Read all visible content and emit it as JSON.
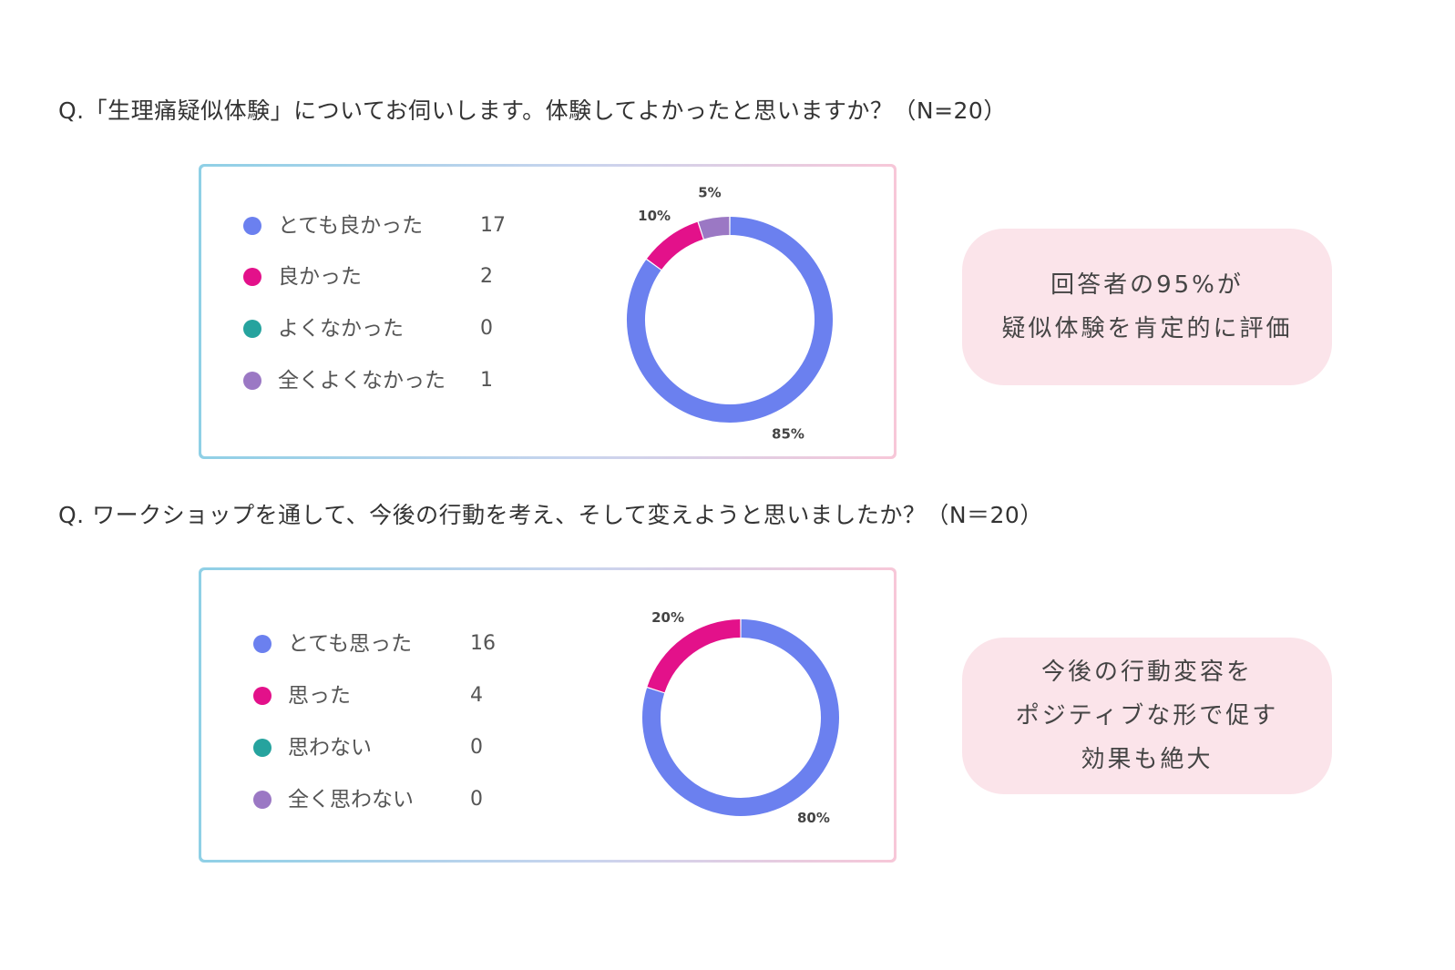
{
  "questions": [
    {
      "text": "Q.「生理痛疑似体験」についてお伺いします。体験してよかったと思いますか？（N=20）",
      "callout_lines": [
        "回答者の95%が",
        "疑似体験を肯定的に評価"
      ]
    },
    {
      "text": "Q. ワークショップを通して、今後の行動を考え、そして変えようと思いましたか？（N＝20）",
      "callout_lines": [
        "今後の行動変容を",
        "ポジティブな形で促す",
        "効果も絶大"
      ]
    }
  ],
  "colors": {
    "blue": "#6b80ef",
    "magenta": "#e3118a",
    "teal": "#26a39e",
    "purple": "#9b78c4"
  },
  "chart_data": [
    {
      "type": "pie",
      "categories": [
        "とても良かった",
        "良かった",
        "よくなかった",
        "全くよくなかった"
      ],
      "values": [
        17,
        2,
        0,
        1
      ],
      "percent_labels": [
        "85%",
        "10%",
        "",
        "5%"
      ],
      "colors": [
        "#6b80ef",
        "#e3118a",
        "#26a39e",
        "#9b78c4"
      ],
      "donut": true
    },
    {
      "type": "pie",
      "categories": [
        "とても思った",
        "思った",
        "思わない",
        "全く思わない"
      ],
      "values": [
        16,
        4,
        0,
        0
      ],
      "percent_labels": [
        "80%",
        "20%",
        "",
        ""
      ],
      "colors": [
        "#6b80ef",
        "#e3118a",
        "#26a39e",
        "#9b78c4"
      ],
      "donut": true
    }
  ]
}
